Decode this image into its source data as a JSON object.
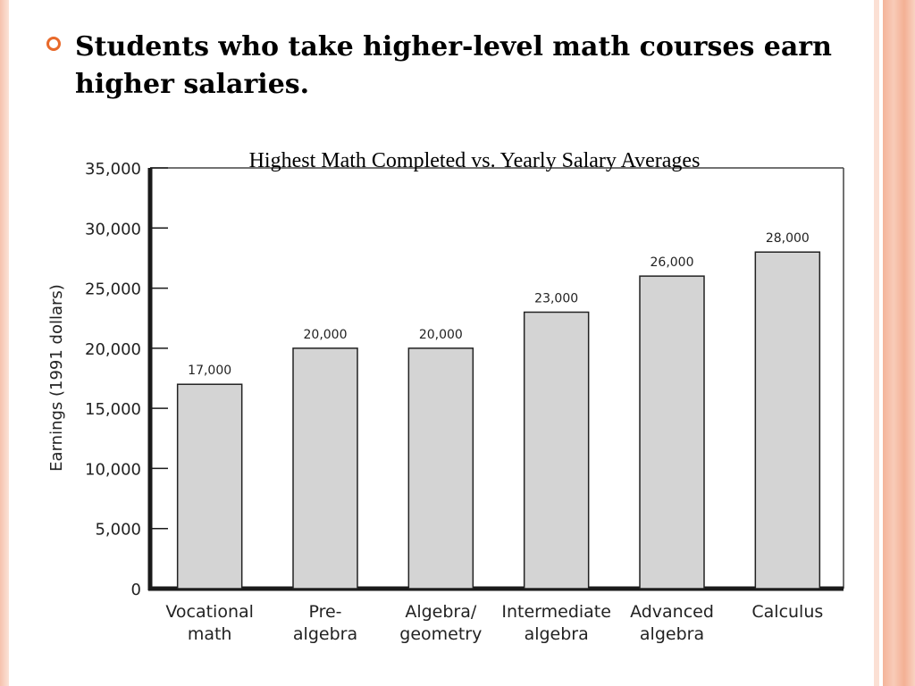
{
  "slide": {
    "bullet_text": "Students who take higher-level math courses earn higher salaries.",
    "bullet_color": "#e8692a"
  },
  "chart_data": {
    "type": "bar",
    "title": "Highest Math Completed vs. Yearly Salary Averages",
    "ylabel": "Earnings (1991 dollars)",
    "xlabel": "",
    "categories": [
      [
        "Vocational",
        "math"
      ],
      [
        "Pre-",
        "algebra"
      ],
      [
        "Algebra/",
        "geometry"
      ],
      [
        "Intermediate",
        "algebra"
      ],
      [
        "Advanced",
        "algebra"
      ],
      [
        "Calculus"
      ]
    ],
    "values": [
      17000,
      20000,
      20000,
      23000,
      26000,
      28000
    ],
    "data_labels": [
      "17,000",
      "20,000",
      "20,000",
      "23,000",
      "26,000",
      "28,000"
    ],
    "ylim": [
      0,
      35000
    ],
    "yticks": [
      0,
      5000,
      10000,
      15000,
      20000,
      25000,
      30000,
      35000
    ],
    "ytick_labels": [
      "0",
      "5,000",
      "10,000",
      "15,000",
      "20,000",
      "25,000",
      "30,000",
      "35,000"
    ],
    "grid": false,
    "legend": "none",
    "bar_color": "#d4d4d4",
    "bar_edge_color": "#222222"
  }
}
